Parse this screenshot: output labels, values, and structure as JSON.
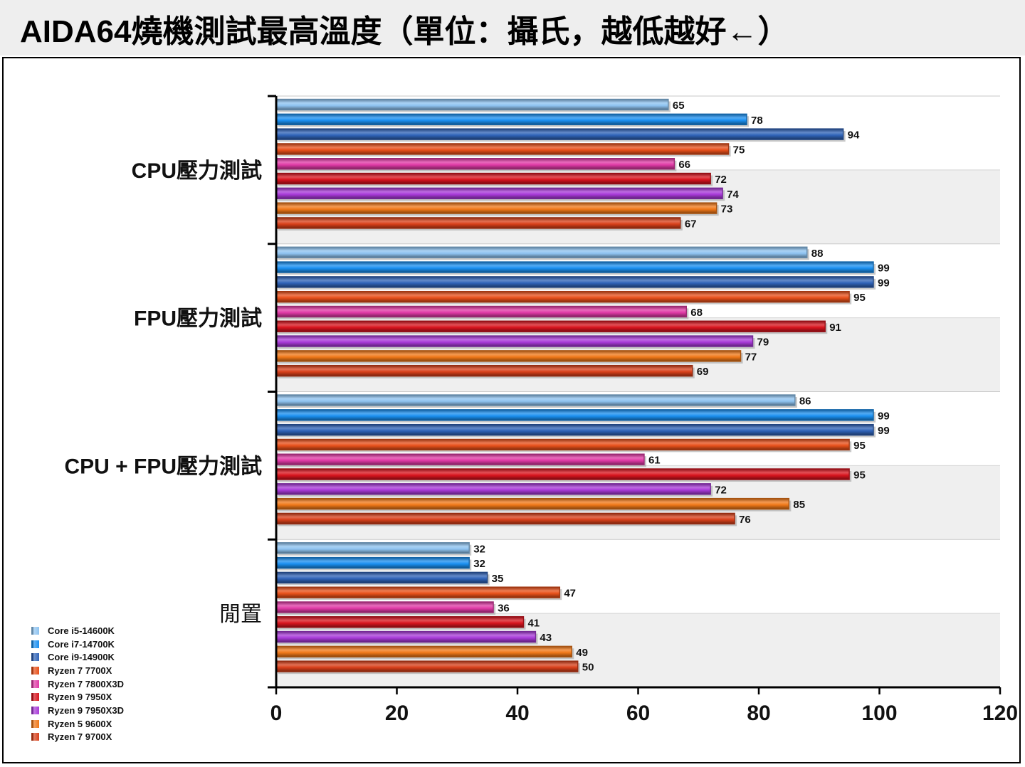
{
  "title": "AIDA64燒機測試最高溫度（單位：攝氏，越低越好←）",
  "chart_data": {
    "type": "bar",
    "orientation": "horizontal",
    "title": "AIDA64燒機測試最高溫度（單位：攝氏，越低越好←）",
    "xlabel": "",
    "ylabel": "",
    "xlim": [
      0,
      120
    ],
    "x_ticks": [
      "0",
      "20",
      "40",
      "60",
      "80",
      "100",
      "120"
    ],
    "categories": [
      "CPU壓力測試",
      "FPU壓力測試",
      "CPU + FPU壓力測試",
      "閒置"
    ],
    "series": [
      {
        "name": "Core i5-14600K",
        "color": "#8ec3f0",
        "values": [
          65,
          88,
          86,
          32
        ]
      },
      {
        "name": "Core i7-14700K",
        "color": "#1a8ff0",
        "values": [
          78,
          99,
          99,
          32
        ]
      },
      {
        "name": "Core i9-14900K",
        "color": "#2f63b8",
        "values": [
          94,
          99,
          99,
          35
        ]
      },
      {
        "name": "Ryzen 7 7700X",
        "color": "#e8501a",
        "values": [
          75,
          95,
          95,
          47
        ]
      },
      {
        "name": "Ryzen 7 7800X3D",
        "color": "#e03aa6",
        "values": [
          66,
          68,
          61,
          36
        ]
      },
      {
        "name": "Ryzen 9 7950X",
        "color": "#d8141e",
        "values": [
          72,
          91,
          95,
          41
        ]
      },
      {
        "name": "Ryzen 9 7950X3D",
        "color": "#a83ad8",
        "values": [
          74,
          79,
          72,
          43
        ]
      },
      {
        "name": "Ryzen 5 9600X",
        "color": "#f07818",
        "values": [
          73,
          77,
          85,
          49
        ]
      },
      {
        "name": "Ryzen 7 9700X",
        "color": "#d8401a",
        "values": [
          67,
          69,
          76,
          50
        ]
      }
    ],
    "legend_position": "bottom-left",
    "grid": true
  }
}
